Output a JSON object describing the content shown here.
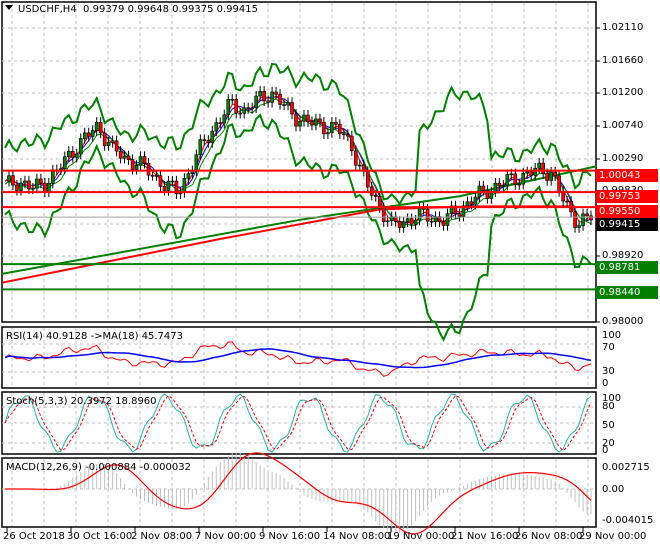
{
  "header": {
    "symbol": "USDCHF,H4",
    "ohlc": "0.99379 0.99648 0.99375 0.99415"
  },
  "panels": {
    "rsi_label": "RSI(14) 40.9128  ->MA(18) 45.7473",
    "stoch_label": "Stoch(5,3,3) 20.3972 18.8960",
    "macd_label": "MACD(12,26,9) -0.000884 -0.000032"
  },
  "price_axis": {
    "ticks": [
      "1.02110",
      "1.01660",
      "1.01200",
      "1.00740",
      "1.00290",
      "0.99830",
      "0.99370",
      "0.98920",
      "0.98000"
    ],
    "levels": [
      {
        "price": "1.00043",
        "color": "#ff0000",
        "type": "resistance"
      },
      {
        "price": "0.99753",
        "color": "#ff0000",
        "type": "resistance"
      },
      {
        "price": "0.99550",
        "color": "#ff0000",
        "type": "resistance"
      },
      {
        "price": "0.99415",
        "color": "#000000",
        "type": "current"
      },
      {
        "price": "0.98781",
        "color": "#008000",
        "type": "support"
      },
      {
        "price": "0.98440",
        "color": "#008000",
        "type": "support"
      }
    ]
  },
  "rsi_axis": [
    "100",
    "70",
    "30",
    "0"
  ],
  "stoch_axis": [
    "100",
    "80",
    "50",
    "20",
    "0"
  ],
  "macd_axis": [
    "0.002715",
    "0.00",
    "-0.004015"
  ],
  "time_axis": [
    "26 Oct 2018",
    "30 Oct 16:00",
    "2 Nov 08:00",
    "7 Nov 00:00",
    "9 Nov 16:00",
    "14 Nov 08:00",
    "19 Nov 00:00",
    "21 Nov 16:00",
    "26 Nov 08:00",
    "29 Nov 00:00"
  ],
  "colors": {
    "bull_candle": "#008000",
    "bear_candle": "#ff0000",
    "bollinger": "#008000",
    "ma_slow": "#ff0000",
    "ma_mid": "#008000",
    "rsi_line": "#ff0000",
    "rsi_ma": "#0000ff",
    "stoch_main": "#20b2aa",
    "stoch_signal": "#ff0000",
    "macd_hist": "#c0c0c0",
    "macd_signal": "#ff0000"
  },
  "chart_data": {
    "type": "candlestick",
    "title": "USDCHF,H4",
    "ohlc_last": {
      "open": 0.99379,
      "high": 0.99648,
      "low": 0.99375,
      "close": 0.99415
    },
    "ylim": [
      0.98,
      1.0232
    ],
    "x_labels": [
      "26 Oct 2018",
      "30 Oct 16:00",
      "2 Nov 08:00",
      "7 Nov 00:00",
      "9 Nov 16:00",
      "14 Nov 08:00",
      "19 Nov 00:00",
      "21 Nov 16:00",
      "26 Nov 08:00",
      "29 Nov 00:00"
    ],
    "close_approx": [
      0.9985,
      0.999,
      0.998,
      0.9988,
      1.0005,
      1.003,
      1.0048,
      1.0065,
      1.0035,
      1.002,
      1.0015,
      1.0,
      0.9985,
      0.9975,
      1.001,
      1.0045,
      1.007,
      1.0095,
      1.0085,
      1.01,
      1.011,
      1.009,
      1.0075,
      1.0068,
      1.0065,
      1.006,
      1.004,
      0.999,
      0.996,
      0.993,
      0.9935,
      0.9945,
      0.994,
      0.9938,
      0.995,
      0.9965,
      0.9975,
      0.9985,
      0.9992,
      0.9998,
      1.0005,
      1.0003,
      0.996,
      0.9935,
      0.9941
    ],
    "horizontal_levels": [
      1.00043,
      0.99753,
      0.9955,
      0.98781,
      0.9844
    ],
    "series": [
      {
        "name": "RSI(14)",
        "last": 40.9128,
        "range": [
          0,
          100
        ],
        "levels": [
          30,
          70
        ]
      },
      {
        "name": "MA(18) of RSI",
        "last": 45.7473
      },
      {
        "name": "Stoch %K(5,3,3)",
        "last": 20.3972,
        "levels": [
          20,
          80
        ]
      },
      {
        "name": "Stoch %D",
        "last": 18.896
      },
      {
        "name": "MACD(12,26,9) main",
        "last": -0.000884,
        "range": [
          -0.004015,
          0.002715
        ]
      },
      {
        "name": "MACD signal",
        "last": -3.2e-05
      }
    ]
  }
}
